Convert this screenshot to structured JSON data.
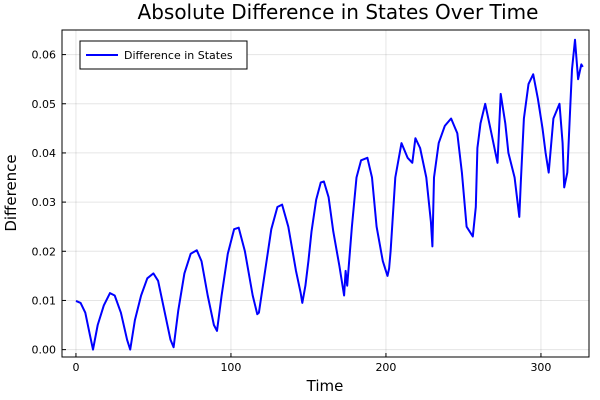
{
  "chart_data": {
    "type": "line",
    "title": "Absolute Difference in States Over Time",
    "xlabel": "Time",
    "ylabel": "Difference",
    "xlim": [
      -9,
      331
    ],
    "ylim": [
      -0.0015,
      0.065
    ],
    "xticks": [
      0,
      100,
      200,
      300
    ],
    "xtick_labels": [
      "0",
      "100",
      "200",
      "300"
    ],
    "yticks": [
      0.0,
      0.01,
      0.02,
      0.03,
      0.04,
      0.05,
      0.06
    ],
    "ytick_labels": [
      "0.00",
      "0.01",
      "0.02",
      "0.03",
      "0.04",
      "0.05",
      "0.06"
    ],
    "grid": true,
    "legend_position": "top-left",
    "series": [
      {
        "name": "Difference in States",
        "color": "#0000ff",
        "x": [
          0,
          3,
          6,
          9,
          11,
          14,
          18,
          22,
          25,
          29,
          33,
          35,
          38,
          42,
          46,
          50,
          53,
          57,
          61,
          63,
          66,
          70,
          74,
          78,
          81,
          85,
          89,
          91,
          94,
          98,
          102,
          105,
          109,
          114,
          117,
          118,
          122,
          126,
          130,
          133,
          137,
          142,
          145,
          146,
          148,
          150,
          152,
          155,
          158,
          160,
          163,
          166,
          170,
          173,
          174,
          175,
          178,
          181,
          184,
          188,
          191,
          194,
          198,
          201,
          202,
          203,
          206,
          210,
          214,
          217,
          219,
          222,
          226,
          229,
          230,
          231,
          234,
          238,
          242,
          246,
          249,
          252,
          256,
          258,
          259,
          261,
          264,
          268,
          272,
          274,
          277,
          279,
          283,
          286,
          287,
          289,
          292,
          295,
          298,
          301,
          303,
          305,
          308,
          312,
          314,
          315,
          317,
          319,
          320,
          322,
          324,
          326,
          327
        ],
        "y": [
          0.0099,
          0.0095,
          0.0075,
          0.003,
          0.0,
          0.005,
          0.009,
          0.0115,
          0.011,
          0.0075,
          0.002,
          0.0,
          0.006,
          0.011,
          0.0145,
          0.0155,
          0.014,
          0.008,
          0.002,
          0.0005,
          0.008,
          0.0155,
          0.0195,
          0.0202,
          0.018,
          0.011,
          0.005,
          0.0038,
          0.011,
          0.0195,
          0.0245,
          0.0248,
          0.02,
          0.011,
          0.0072,
          0.0075,
          0.016,
          0.0245,
          0.029,
          0.0295,
          0.025,
          0.016,
          0.0115,
          0.0095,
          0.013,
          0.018,
          0.024,
          0.0305,
          0.034,
          0.0342,
          0.031,
          0.024,
          0.017,
          0.011,
          0.016,
          0.013,
          0.025,
          0.035,
          0.0385,
          0.039,
          0.035,
          0.025,
          0.018,
          0.015,
          0.0165,
          0.02,
          0.035,
          0.042,
          0.039,
          0.038,
          0.043,
          0.041,
          0.035,
          0.026,
          0.021,
          0.035,
          0.042,
          0.0455,
          0.047,
          0.044,
          0.036,
          0.025,
          0.023,
          0.029,
          0.041,
          0.046,
          0.05,
          0.044,
          0.038,
          0.052,
          0.046,
          0.04,
          0.035,
          0.027,
          0.034,
          0.047,
          0.054,
          0.056,
          0.051,
          0.045,
          0.04,
          0.036,
          0.047,
          0.05,
          0.042,
          0.033,
          0.036,
          0.05,
          0.057,
          0.063,
          0.055,
          0.058,
          0.0575
        ]
      }
    ]
  }
}
